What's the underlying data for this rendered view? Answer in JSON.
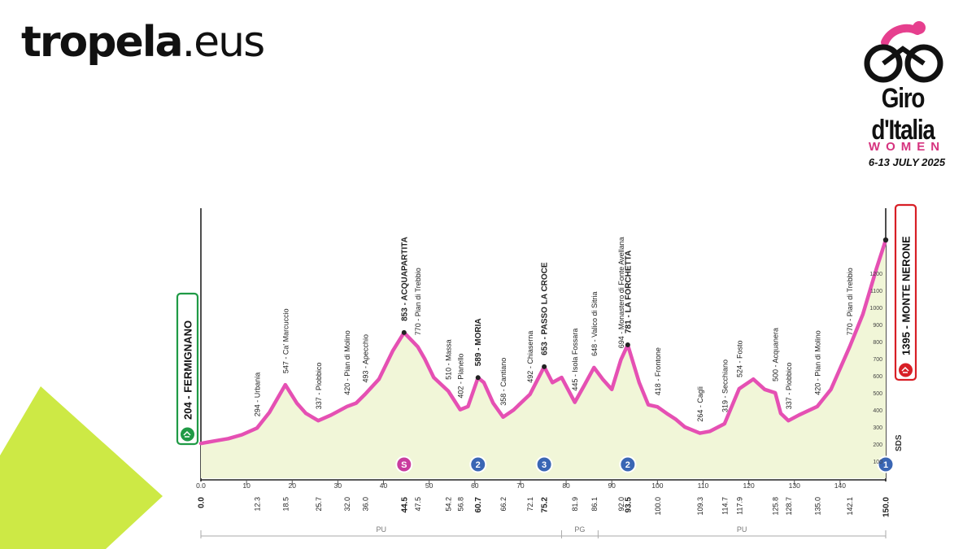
{
  "brand": {
    "name_bold": "tropela",
    "name_light": ".eus"
  },
  "race": {
    "name": "Giro d'Italia",
    "subtitle": "WOMEN",
    "dates": "6-13 JULY 2025"
  },
  "chart_data": {
    "type": "area",
    "start": {
      "alt": "204",
      "name": "FERMIGNANO",
      "label": "204 - FERMIGNANO"
    },
    "finish": {
      "alt": "1395",
      "name": "MONTE NERONE",
      "label": "1395 - MONTE NERONE"
    },
    "profile": [
      [
        0,
        204
      ],
      [
        3,
        218
      ],
      [
        6,
        232
      ],
      [
        9,
        255
      ],
      [
        12.3,
        294
      ],
      [
        15,
        385
      ],
      [
        18.5,
        547
      ],
      [
        21,
        440
      ],
      [
        23,
        380
      ],
      [
        25.7,
        337
      ],
      [
        28.5,
        370
      ],
      [
        32,
        420
      ],
      [
        34,
        440
      ],
      [
        36,
        493
      ],
      [
        39,
        580
      ],
      [
        42,
        745
      ],
      [
        44.5,
        853
      ],
      [
        47.5,
        770
      ],
      [
        49,
        700
      ],
      [
        51,
        590
      ],
      [
        54.2,
        510
      ],
      [
        56.8,
        402
      ],
      [
        58.5,
        420
      ],
      [
        60.7,
        589
      ],
      [
        62,
        560
      ],
      [
        64,
        440
      ],
      [
        66.2,
        358
      ],
      [
        68.5,
        400
      ],
      [
        72.1,
        492
      ],
      [
        75.2,
        653
      ],
      [
        77,
        560
      ],
      [
        79,
        590
      ],
      [
        81.9,
        445
      ],
      [
        84,
        545
      ],
      [
        86.1,
        648
      ],
      [
        88,
        580
      ],
      [
        90,
        520
      ],
      [
        92,
        694
      ],
      [
        93.5,
        781
      ],
      [
        96,
        560
      ],
      [
        98,
        430
      ],
      [
        100,
        418
      ],
      [
        102,
        380
      ],
      [
        104,
        345
      ],
      [
        106,
        300
      ],
      [
        109.3,
        264
      ],
      [
        111.5,
        275
      ],
      [
        114.7,
        319
      ],
      [
        117.9,
        524
      ],
      [
        121,
        580
      ],
      [
        123.5,
        520
      ],
      [
        125.8,
        500
      ],
      [
        127,
        380
      ],
      [
        128.7,
        337
      ],
      [
        131,
        370
      ],
      [
        135,
        420
      ],
      [
        138,
        520
      ],
      [
        142.1,
        770
      ],
      [
        145,
        960
      ],
      [
        148,
        1230
      ],
      [
        150,
        1395
      ]
    ],
    "km_labels": [
      "0.0",
      "12.3",
      "18.5",
      "25.7",
      "32.0",
      "36.0",
      "44.5",
      "47.5",
      "54.2",
      "56.8",
      "60.7",
      "66.2",
      "72.1",
      "75.2",
      "81.9",
      "86.1",
      "92.0",
      "93.5",
      "100.0",
      "109.3",
      "114.7",
      "117.9",
      "125.8",
      "128.7",
      "135.0",
      "142.1",
      "150.0"
    ],
    "bold_km": [
      "0.0",
      "44.5",
      "60.7",
      "75.2",
      "93.5",
      "150.0"
    ],
    "x_ticks": [
      10,
      20,
      30,
      40,
      50,
      60,
      70,
      80,
      90,
      100,
      110,
      120,
      130,
      140
    ],
    "alt_ticks": [
      100,
      200,
      300,
      400,
      500,
      600,
      700,
      800,
      900,
      1000,
      1100,
      1200
    ],
    "waypoints": [
      {
        "km": 12.3,
        "label": "294 - Urbania",
        "bold": false
      },
      {
        "km": 18.5,
        "label": "547 - Ca' Marcuccio",
        "bold": false
      },
      {
        "km": 25.7,
        "label": "337 - Piobbico",
        "bold": false
      },
      {
        "km": 32.0,
        "label": "420 - Pian di Molino",
        "bold": false
      },
      {
        "km": 36.0,
        "label": "493 - Apecchio",
        "bold": false
      },
      {
        "km": 44.5,
        "label": "853 - ACQUAPARTITA",
        "bold": true
      },
      {
        "km": 47.5,
        "label": "770 - Pian di Trebbio",
        "bold": false
      },
      {
        "km": 54.2,
        "label": "510 - Massa",
        "bold": false
      },
      {
        "km": 56.8,
        "label": "402 - Pianello",
        "bold": false
      },
      {
        "km": 60.7,
        "label": "589 - MORIA",
        "bold": true
      },
      {
        "km": 66.2,
        "label": "358 - Cantiano",
        "bold": false
      },
      {
        "km": 72.1,
        "label": "492 - Chiaserna",
        "bold": false
      },
      {
        "km": 75.2,
        "label": "653 - PASSO LA CROCE",
        "bold": true
      },
      {
        "km": 81.9,
        "label": "445 - Isola Fossara",
        "bold": false
      },
      {
        "km": 86.1,
        "label": "648 - Valico di Sitria",
        "bold": false
      },
      {
        "km": 92.0,
        "label": "694 - Monastero di Fonte Avellana",
        "bold": false
      },
      {
        "km": 93.5,
        "label": "781 - LA FORCHETTA",
        "bold": true
      },
      {
        "km": 100.0,
        "label": "418 - Frontone",
        "bold": false
      },
      {
        "km": 109.3,
        "label": "264 - Cagli",
        "bold": false
      },
      {
        "km": 114.7,
        "label": "319 - Secchiano",
        "bold": false
      },
      {
        "km": 117.9,
        "label": "524 - Fosto",
        "bold": false
      },
      {
        "km": 125.8,
        "label": "500 - Acquanera",
        "bold": false
      },
      {
        "km": 128.7,
        "label": "337 - Piobbico",
        "bold": false
      },
      {
        "km": 135.0,
        "label": "420 - Pian di Molino",
        "bold": false
      },
      {
        "km": 142.1,
        "label": "770 - Pian di Trebbio",
        "bold": false
      }
    ],
    "badges": [
      {
        "km": 44.5,
        "text": "S",
        "color": "#c93c9e"
      },
      {
        "km": 60.7,
        "text": "2",
        "color": "#3a66b4"
      },
      {
        "km": 75.2,
        "text": "3",
        "color": "#3a66b4"
      },
      {
        "km": 93.5,
        "text": "2",
        "color": "#3a66b4"
      },
      {
        "km": 150.0,
        "text": "1",
        "color": "#3a66b4"
      }
    ],
    "provinces": [
      {
        "name": "PU",
        "from": 0,
        "to": 79
      },
      {
        "name": "PG",
        "from": 79,
        "to": 87
      },
      {
        "name": "PU",
        "from": 87,
        "to": 150
      }
    ],
    "sds": "SDS",
    "colors": {
      "line": "#e550b3",
      "fill": "#f1f6d8",
      "start": "#1f9a45",
      "finish": "#d81f26",
      "accent": "#cde945"
    }
  }
}
